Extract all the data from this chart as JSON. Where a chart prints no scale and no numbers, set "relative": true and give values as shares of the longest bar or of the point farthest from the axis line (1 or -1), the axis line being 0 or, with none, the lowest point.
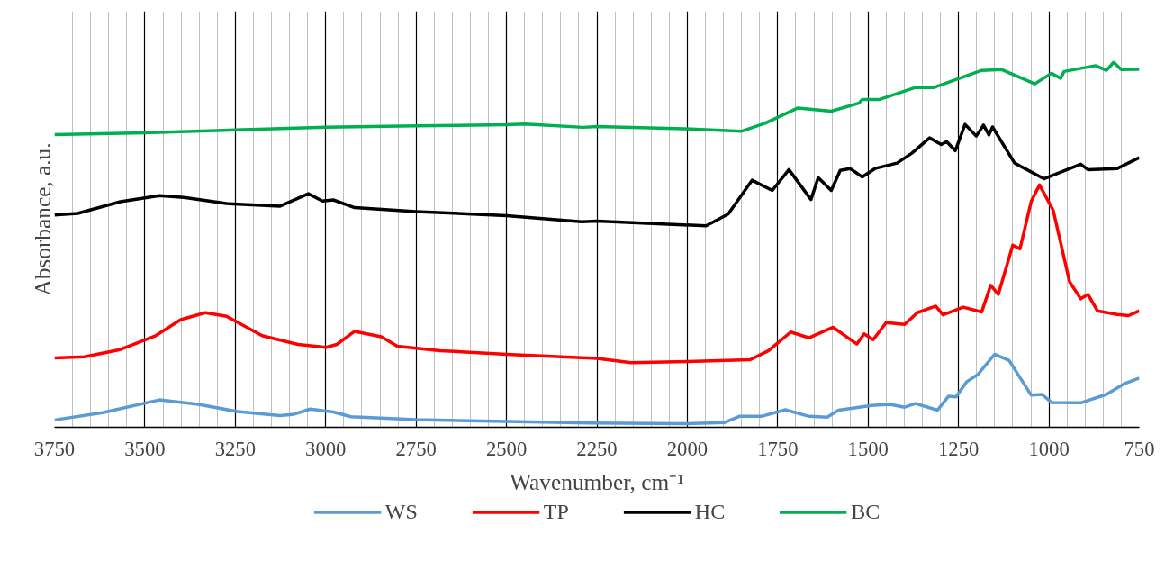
{
  "chart_data": {
    "type": "line",
    "relative": true,
    "xlabel": "Wavenumber, cm⁻¹",
    "ylabel": "Absorbance, a.u.",
    "xlim": [
      3750,
      750
    ],
    "xticks": [
      3750,
      3500,
      3250,
      3000,
      2750,
      2500,
      2250,
      2000,
      1750,
      1500,
      1250,
      1000,
      750
    ],
    "grid": "x",
    "legend": "bottom",
    "line_style": "solid",
    "marker": "none",
    "series": [
      {
        "name": "WS",
        "color": "#5b9bd5",
        "x": [
          3750,
          3617,
          3460,
          3352,
          3244,
          3126,
          3087,
          3043,
          2979,
          2930,
          2750,
          2500,
          2270,
          2008,
          1897,
          1856,
          1795,
          1729,
          1663,
          1613,
          1582,
          1490,
          1440,
          1399,
          1369,
          1308,
          1278,
          1257,
          1227,
          1196,
          1150,
          1110,
          1049,
          1019,
          993,
          912,
          841,
          790,
          750
        ],
        "values": [
          0.02,
          0.04,
          0.075,
          0.063,
          0.043,
          0.032,
          0.036,
          0.05,
          0.042,
          0.029,
          0.021,
          0.016,
          0.012,
          0.01,
          0.013,
          0.03,
          0.03,
          0.048,
          0.03,
          0.028,
          0.047,
          0.06,
          0.063,
          0.055,
          0.065,
          0.047,
          0.085,
          0.083,
          0.125,
          0.145,
          0.2,
          0.183,
          0.088,
          0.09,
          0.068,
          0.067,
          0.09,
          0.12,
          0.135
        ]
      },
      {
        "name": "TP",
        "color": "#ff0000",
        "x": [
          3750,
          3667,
          3568,
          3470,
          3401,
          3333,
          3274,
          3176,
          3077,
          2999,
          2969,
          2920,
          2846,
          2802,
          2684,
          2500,
          2250,
          2156,
          2000,
          1826,
          1775,
          1714,
          1663,
          1597,
          1531,
          1511,
          1486,
          1450,
          1399,
          1364,
          1313,
          1293,
          1237,
          1186,
          1161,
          1140,
          1100,
          1080,
          1049,
          1026,
          988,
          943,
          912,
          892,
          866,
          811,
          780,
          750
        ],
        "values": [
          0.19,
          0.193,
          0.213,
          0.251,
          0.295,
          0.314,
          0.304,
          0.251,
          0.227,
          0.219,
          0.227,
          0.263,
          0.248,
          0.222,
          0.21,
          0.2,
          0.189,
          0.177,
          0.18,
          0.185,
          0.21,
          0.261,
          0.245,
          0.274,
          0.228,
          0.256,
          0.24,
          0.287,
          0.282,
          0.314,
          0.332,
          0.308,
          0.329,
          0.316,
          0.389,
          0.364,
          0.499,
          0.489,
          0.619,
          0.664,
          0.594,
          0.399,
          0.352,
          0.364,
          0.319,
          0.309,
          0.306,
          0.319
        ]
      },
      {
        "name": "HC",
        "color": "#000000",
        "x": [
          3750,
          3686,
          3568,
          3460,
          3392,
          3274,
          3126,
          3048,
          3009,
          2979,
          2920,
          2750,
          2500,
          2292,
          2250,
          2110,
          1948,
          1887,
          1821,
          1765,
          1719,
          1658,
          1638,
          1602,
          1577,
          1550,
          1516,
          1481,
          1420,
          1379,
          1330,
          1298,
          1283,
          1259,
          1232,
          1201,
          1181,
          1166,
          1156,
          1095,
          1014,
          912,
          892,
          811,
          750
        ],
        "values": [
          0.582,
          0.586,
          0.618,
          0.635,
          0.63,
          0.613,
          0.606,
          0.64,
          0.62,
          0.623,
          0.602,
          0.591,
          0.58,
          0.563,
          0.565,
          0.559,
          0.552,
          0.584,
          0.677,
          0.649,
          0.706,
          0.624,
          0.684,
          0.649,
          0.704,
          0.709,
          0.686,
          0.709,
          0.724,
          0.751,
          0.793,
          0.775,
          0.783,
          0.758,
          0.83,
          0.798,
          0.828,
          0.801,
          0.823,
          0.724,
          0.681,
          0.721,
          0.706,
          0.709,
          0.739
        ]
      },
      {
        "name": "BC",
        "color": "#00b050",
        "x": [
          3750,
          3500,
          3250,
          3000,
          2750,
          2500,
          2449,
          2288,
          2250,
          2008,
          1851,
          1785,
          1694,
          1602,
          1526,
          1516,
          1470,
          1369,
          1318,
          1186,
          1130,
          1039,
          993,
          968,
          958,
          871,
          841,
          821,
          800,
          750
        ],
        "values": [
          0.802,
          0.807,
          0.815,
          0.822,
          0.826,
          0.829,
          0.831,
          0.822,
          0.824,
          0.818,
          0.811,
          0.833,
          0.875,
          0.866,
          0.888,
          0.898,
          0.898,
          0.931,
          0.931,
          0.978,
          0.98,
          0.941,
          0.97,
          0.956,
          0.975,
          0.991,
          0.978,
          1.0,
          0.98,
          0.981
        ]
      }
    ]
  }
}
